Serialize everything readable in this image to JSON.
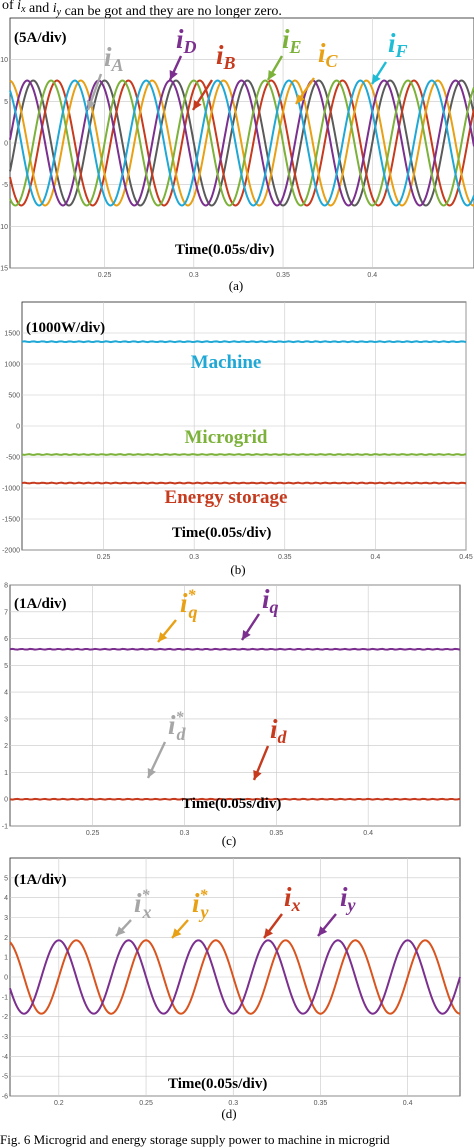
{
  "header_text": "of i_x and i_y can be got and they are no longer zero.",
  "footer_text": "Fig. 6 Microgrid and energy storage supply power to machine in microgrid",
  "chart_data": [
    {
      "type": "line",
      "panel_label": "(a)",
      "scale_label": "(5A/div)",
      "xlabel": "Time(0.05s/div)",
      "xlim": [
        0.197,
        0.457
      ],
      "ylim": [
        -15,
        15
      ],
      "x_ticks": [
        0.25,
        0.3,
        0.35,
        0.4
      ],
      "y_ticks": [
        10,
        5,
        0,
        -5,
        -10,
        -15
      ],
      "grid": true,
      "frequency_hz": 25,
      "amplitude": 7.5,
      "series": [
        {
          "name": "A",
          "phase_deg": 0,
          "color": "#5a5a5a"
        },
        {
          "name": "B",
          "phase_deg": -120,
          "color": "#c63a1e"
        },
        {
          "name": "C",
          "phase_deg": 120,
          "color": "#e8a015"
        },
        {
          "name": "D",
          "phase_deg": 30,
          "color": "#7b2f8e"
        },
        {
          "name": "E",
          "phase_deg": -90,
          "color": "#7cb13a"
        },
        {
          "name": "F",
          "phase_deg": 150,
          "color": "#1fa8d6"
        }
      ],
      "annotations": [
        {
          "base": "i",
          "sub": "A",
          "sup": "",
          "color": "#a6a6a6"
        },
        {
          "base": "i",
          "sub": "D",
          "sup": "",
          "color": "#7b2f8e"
        },
        {
          "base": "i",
          "sub": "B",
          "sup": "",
          "color": "#c63a1e"
        },
        {
          "base": "i",
          "sub": "E",
          "sup": "",
          "color": "#7cb13a"
        },
        {
          "base": "i",
          "sub": "C",
          "sup": "",
          "color": "#e8a015"
        },
        {
          "base": "i",
          "sub": "F",
          "sup": "",
          "color": "#1fbcd6"
        }
      ]
    },
    {
      "type": "line",
      "panel_label": "(b)",
      "scale_label": "(1000W/div)",
      "xlabel": "Time(0.05s/div)",
      "xlim": [
        0.205,
        0.45
      ],
      "ylim": [
        -2000,
        2000
      ],
      "x_ticks": [
        0.25,
        0.3,
        0.35,
        0.4,
        0.45
      ],
      "y_ticks": [
        1500,
        1000,
        500,
        0,
        -500,
        -1000,
        -1500,
        -2000
      ],
      "grid": true,
      "series": [
        {
          "name": "Machine",
          "value": 1360,
          "color": "#1fa8d6"
        },
        {
          "name": "Microgrid",
          "value": -460,
          "color": "#7cb13a"
        },
        {
          "name": "Energy storage",
          "value": -920,
          "color": "#c63a1e"
        }
      ]
    },
    {
      "type": "line",
      "panel_label": "(c)",
      "scale_label": "(1A/div)",
      "xlabel": "Time(0.05s/div)",
      "xlim": [
        0.205,
        0.45
      ],
      "ylim": [
        -1,
        8
      ],
      "x_ticks": [
        0.25,
        0.3,
        0.35,
        0.4
      ],
      "y_ticks": [
        8,
        7,
        6,
        5,
        4,
        3,
        2,
        1,
        0,
        -1
      ],
      "grid": true,
      "series": [
        {
          "name": "iq",
          "value": 5.6,
          "color": "#7b2f8e"
        },
        {
          "name": "id",
          "value": 0.0,
          "color": "#c63a1e"
        }
      ],
      "annotations": [
        {
          "base": "i",
          "sub": "q",
          "sup": "*",
          "color": "#e8a015"
        },
        {
          "base": "i",
          "sub": "q",
          "sup": "",
          "color": "#7b2f8e"
        },
        {
          "base": "i",
          "sub": "d",
          "sup": "*",
          "color": "#a6a6a6"
        },
        {
          "base": "i",
          "sub": "d",
          "sup": "",
          "color": "#c63a1e"
        }
      ]
    },
    {
      "type": "line",
      "panel_label": "(d)",
      "scale_label": "(1A/div)",
      "xlabel": "Time(0.05s/div)",
      "xlim": [
        0.172,
        0.43
      ],
      "ylim": [
        -6,
        6
      ],
      "x_ticks": [
        0.2,
        0.25,
        0.3,
        0.35,
        0.4
      ],
      "y_ticks": [
        5,
        4,
        3,
        2,
        1,
        0,
        -1,
        -2,
        -3,
        -4,
        -5,
        -6
      ],
      "grid": true,
      "frequency_hz": 25,
      "amplitude": 1.85,
      "series": [
        {
          "name": "ix",
          "phase_deg": 0,
          "color": "#d9541e"
        },
        {
          "name": "iy",
          "phase_deg": 90,
          "color": "#7b2f8e"
        }
      ],
      "annotations": [
        {
          "base": "i",
          "sub": "x",
          "sup": "*",
          "color": "#a6a6a6"
        },
        {
          "base": "i",
          "sub": "y",
          "sup": "*",
          "color": "#e8a015"
        },
        {
          "base": "i",
          "sub": "x",
          "sup": "",
          "color": "#c63a1e"
        },
        {
          "base": "i",
          "sub": "y",
          "sup": "",
          "color": "#7b2f8e"
        }
      ]
    }
  ]
}
